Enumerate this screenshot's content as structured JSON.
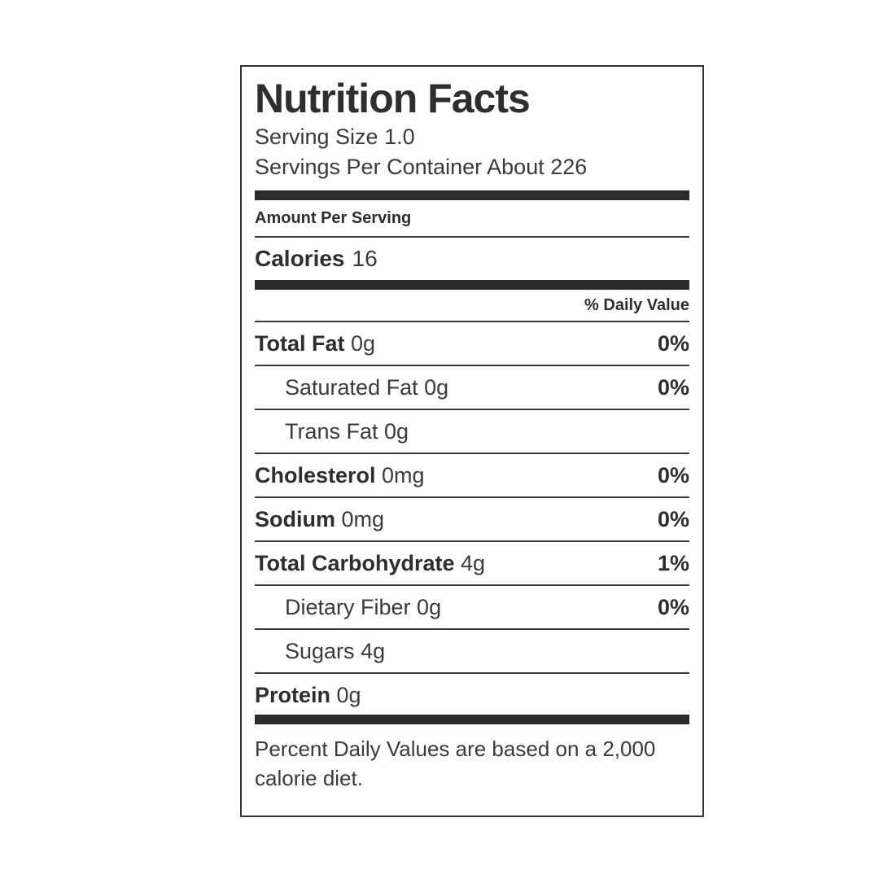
{
  "label": {
    "title": "Nutrition Facts",
    "serving_size": "Serving Size 1.0",
    "servings_per_container": "Servings Per Container About 226",
    "amount_per_serving": "Amount Per Serving",
    "calories_label": "Calories",
    "calories_value": "16",
    "daily_value_header": "% Daily Value",
    "rows": [
      {
        "name": "Total Fat",
        "value": "0g",
        "dv": "0%",
        "bold": true,
        "indent": false
      },
      {
        "name": "Saturated Fat",
        "value": "0g",
        "dv": "0%",
        "bold": false,
        "indent": true
      },
      {
        "name": "Trans Fat",
        "value": "0g",
        "dv": "",
        "bold": false,
        "indent": true
      },
      {
        "name": "Cholesterol",
        "value": "0mg",
        "dv": "0%",
        "bold": true,
        "indent": false
      },
      {
        "name": "Sodium",
        "value": "0mg",
        "dv": "0%",
        "bold": true,
        "indent": false
      },
      {
        "name": "Total Carbohydrate",
        "value": "4g",
        "dv": "1%",
        "bold": true,
        "indent": false
      },
      {
        "name": "Dietary Fiber",
        "value": "0g",
        "dv": "0%",
        "bold": false,
        "indent": true
      },
      {
        "name": "Sugars",
        "value": "4g",
        "dv": "",
        "bold": false,
        "indent": true
      },
      {
        "name": "Protein",
        "value": "0g",
        "dv": "",
        "bold": true,
        "indent": false
      }
    ],
    "footnote": "Percent Daily Values are based on a 2,000 calorie diet.",
    "colors": {
      "text": "#333333",
      "bar": "#2b2b2b",
      "border": "#333333",
      "background": "#ffffff"
    }
  }
}
